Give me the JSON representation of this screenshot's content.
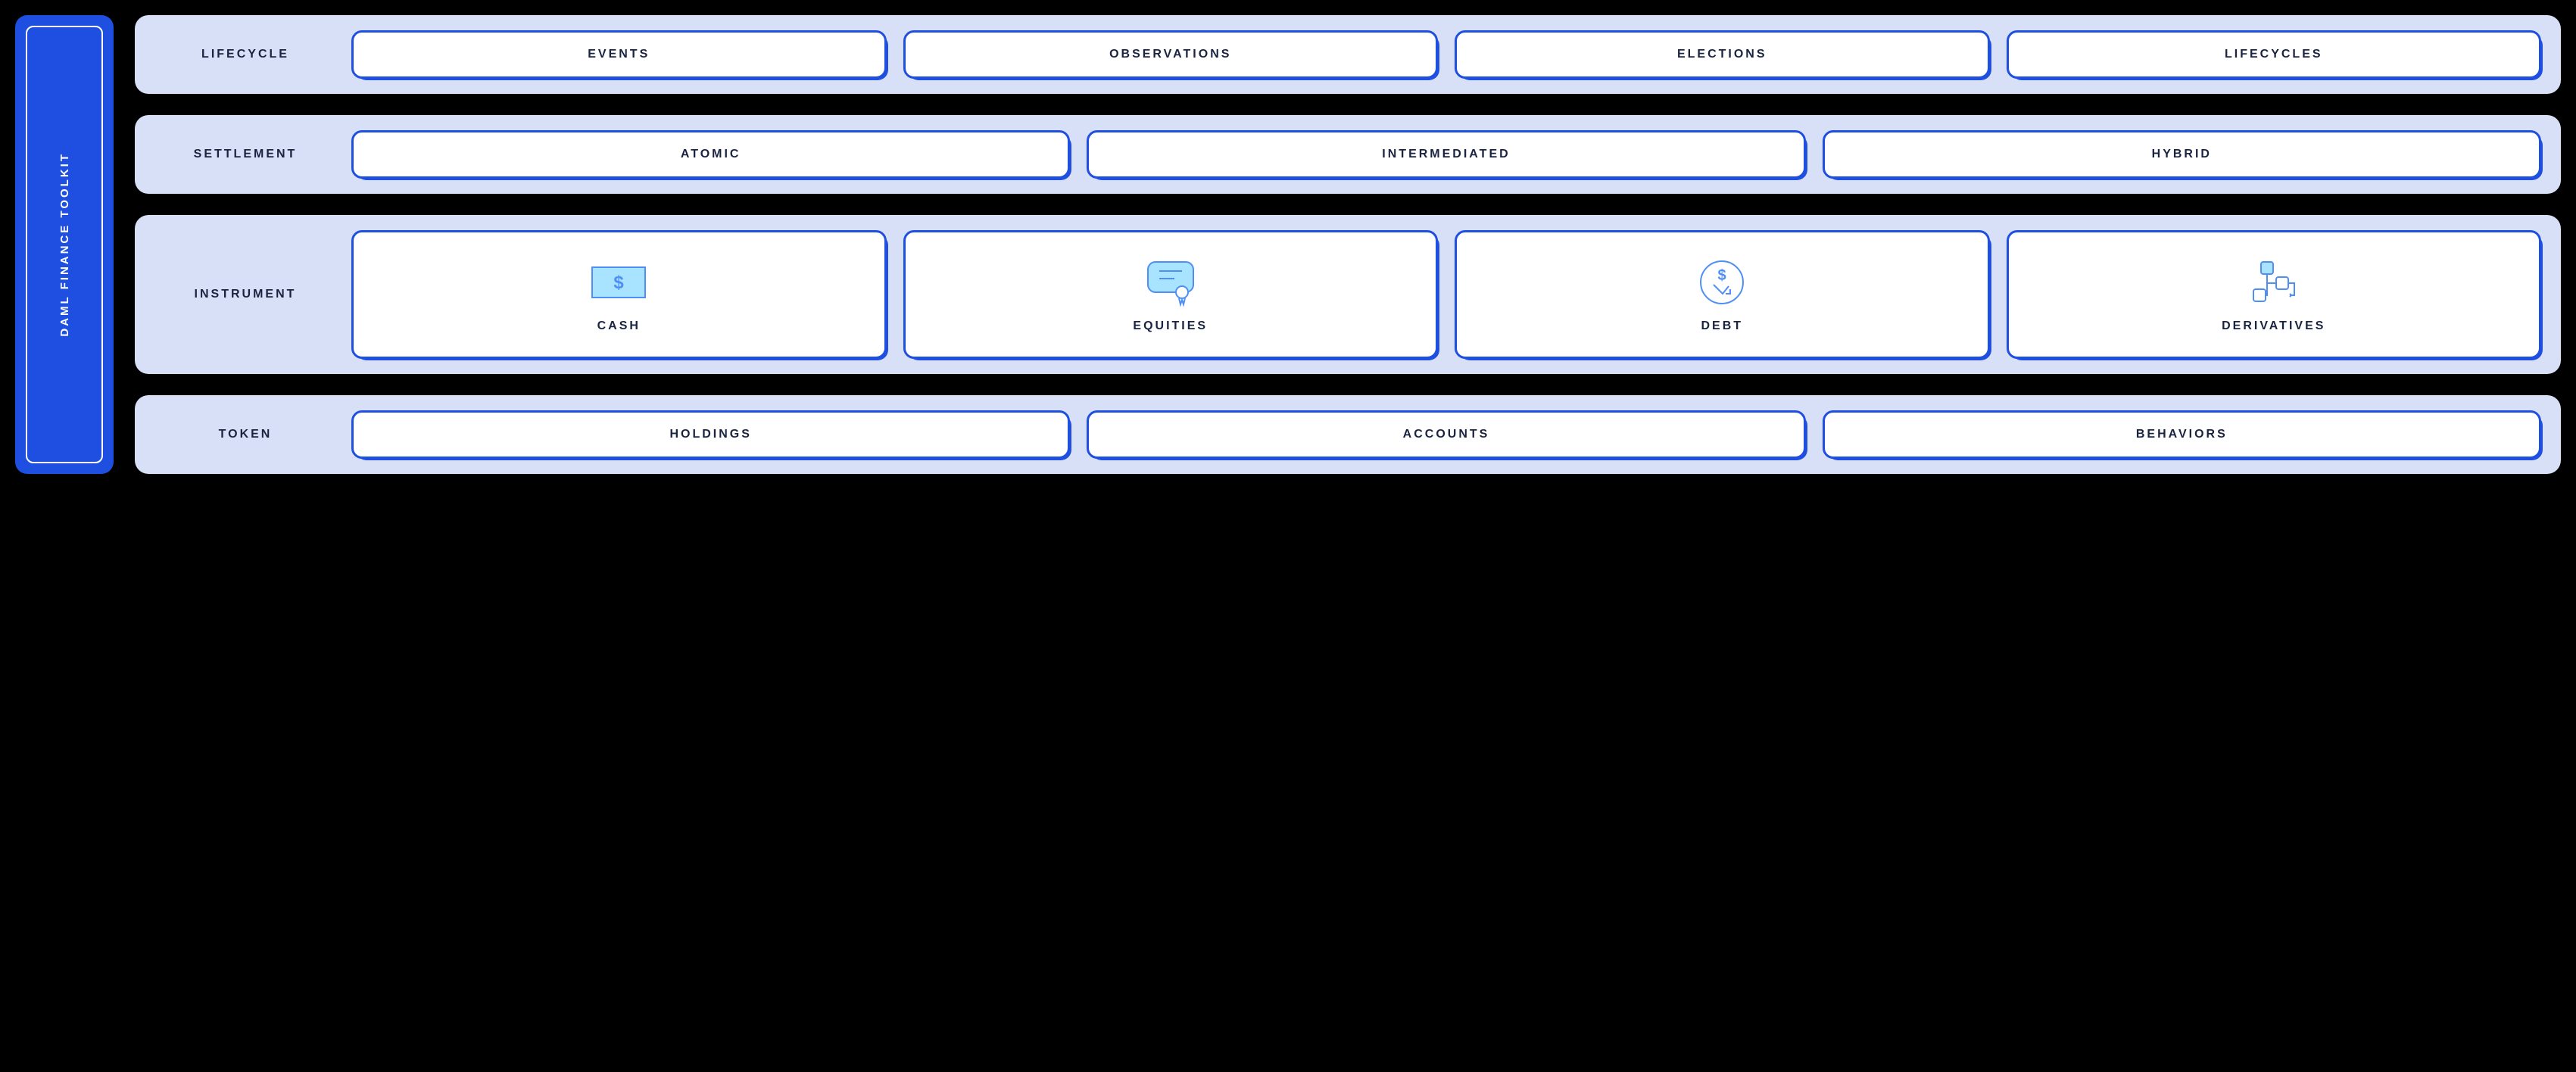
{
  "colors": {
    "page_bg": "#000000",
    "sidebar_bg": "#1f4fe0",
    "sidebar_border": "#ffffff",
    "sidebar_text": "#ffffff",
    "row_bg": "#d8e0f7",
    "row_label_text": "#1a2340",
    "card_bg": "#ffffff",
    "card_border": "#1f4fe0",
    "card_shadow": "#1f4fe0",
    "card_text": "#1a2340",
    "icon_stroke": "#4f8ff5",
    "icon_fill": "#a8e3ff"
  },
  "sidebar": {
    "label": "DAML FINANCE TOOLKIT"
  },
  "rows": [
    {
      "id": "lifecycle",
      "label": "LIFECYCLE",
      "height": "short",
      "items": [
        {
          "label": "EVENTS"
        },
        {
          "label": "OBSERVATIONS"
        },
        {
          "label": "ELECTIONS"
        },
        {
          "label": "LIFECYCLES"
        }
      ]
    },
    {
      "id": "settlement",
      "label": "SETTLEMENT",
      "height": "short",
      "items": [
        {
          "label": "ATOMIC"
        },
        {
          "label": "INTERMEDIATED"
        },
        {
          "label": "HYBRID"
        }
      ]
    },
    {
      "id": "instrument",
      "label": "INSTRUMENT",
      "height": "tall",
      "items": [
        {
          "label": "CASH",
          "icon": "cash"
        },
        {
          "label": "EQUITIES",
          "icon": "equities"
        },
        {
          "label": "DEBT",
          "icon": "debt"
        },
        {
          "label": "DERIVATIVES",
          "icon": "derivatives"
        }
      ]
    },
    {
      "id": "token",
      "label": "TOKEN",
      "height": "short",
      "items": [
        {
          "label": "HOLDINGS"
        },
        {
          "label": "ACCOUNTS"
        },
        {
          "label": "BEHAVIORS"
        }
      ]
    }
  ]
}
